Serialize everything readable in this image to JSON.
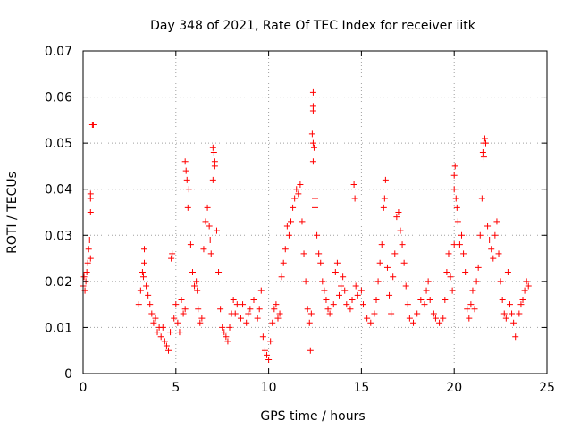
{
  "chart_data": {
    "type": "scatter",
    "title": "Day 348 of 2021, Rate Of TEC Index for receiver iitk",
    "xlabel": "GPS time / hours",
    "ylabel": "ROTI / TECUs",
    "xlim": [
      0,
      25
    ],
    "ylim": [
      0,
      0.07
    ],
    "x_ticks": [
      0,
      5,
      10,
      15,
      20,
      25
    ],
    "x_tick_labels": [
      "0",
      "5",
      "10",
      "15",
      "20",
      "25"
    ],
    "y_ticks": [
      0,
      0.01,
      0.02,
      0.03,
      0.04,
      0.05,
      0.06,
      0.07
    ],
    "y_tick_labels": [
      "0",
      "0.01",
      "0.02",
      "0.03",
      "0.04",
      "0.05",
      "0.06",
      "0.07"
    ],
    "grid": true,
    "marker": "+",
    "color": "#ff0000",
    "series": [
      {
        "points": [
          [
            0.0,
            0.019
          ],
          [
            0.05,
            0.021
          ],
          [
            0.1,
            0.018
          ],
          [
            0.15,
            0.02
          ],
          [
            0.2,
            0.022
          ],
          [
            0.25,
            0.024
          ],
          [
            0.3,
            0.027
          ],
          [
            0.35,
            0.029
          ],
          [
            0.4,
            0.025
          ],
          [
            0.4,
            0.035
          ],
          [
            0.4,
            0.038
          ],
          [
            0.4,
            0.039
          ],
          [
            0.5,
            0.054
          ],
          [
            0.55,
            0.054
          ],
          [
            3.0,
            0.015
          ],
          [
            3.1,
            0.018
          ],
          [
            3.2,
            0.022
          ],
          [
            3.25,
            0.021
          ],
          [
            3.3,
            0.024
          ],
          [
            3.3,
            0.027
          ],
          [
            3.4,
            0.019
          ],
          [
            3.5,
            0.017
          ],
          [
            3.6,
            0.015
          ],
          [
            3.7,
            0.013
          ],
          [
            3.8,
            0.011
          ],
          [
            3.9,
            0.012
          ],
          [
            4.0,
            0.009
          ],
          [
            4.1,
            0.01
          ],
          [
            4.2,
            0.008
          ],
          [
            4.3,
            0.01
          ],
          [
            4.4,
            0.007
          ],
          [
            4.5,
            0.006
          ],
          [
            4.6,
            0.005
          ],
          [
            4.7,
            0.009
          ],
          [
            4.75,
            0.025
          ],
          [
            4.8,
            0.026
          ],
          [
            4.9,
            0.012
          ],
          [
            5.0,
            0.015
          ],
          [
            5.1,
            0.011
          ],
          [
            5.2,
            0.009
          ],
          [
            5.3,
            0.016
          ],
          [
            5.4,
            0.013
          ],
          [
            5.5,
            0.014
          ],
          [
            5.5,
            0.046
          ],
          [
            5.55,
            0.044
          ],
          [
            5.6,
            0.042
          ],
          [
            5.65,
            0.036
          ],
          [
            5.7,
            0.04
          ],
          [
            5.8,
            0.028
          ],
          [
            5.9,
            0.022
          ],
          [
            6.0,
            0.019
          ],
          [
            6.1,
            0.02
          ],
          [
            6.15,
            0.018
          ],
          [
            6.2,
            0.014
          ],
          [
            6.3,
            0.011
          ],
          [
            6.4,
            0.012
          ],
          [
            6.5,
            0.027
          ],
          [
            6.6,
            0.033
          ],
          [
            6.7,
            0.036
          ],
          [
            6.8,
            0.032
          ],
          [
            6.85,
            0.029
          ],
          [
            6.9,
            0.026
          ],
          [
            7.0,
            0.049
          ],
          [
            7.05,
            0.048
          ],
          [
            7.1,
            0.046
          ],
          [
            7.1,
            0.045
          ],
          [
            7.0,
            0.042
          ],
          [
            7.2,
            0.031
          ],
          [
            7.3,
            0.022
          ],
          [
            7.4,
            0.014
          ],
          [
            7.5,
            0.01
          ],
          [
            7.6,
            0.009
          ],
          [
            7.7,
            0.008
          ],
          [
            7.8,
            0.007
          ],
          [
            7.9,
            0.01
          ],
          [
            8.0,
            0.013
          ],
          [
            8.1,
            0.016
          ],
          [
            8.2,
            0.013
          ],
          [
            8.3,
            0.015
          ],
          [
            8.5,
            0.012
          ],
          [
            8.6,
            0.015
          ],
          [
            8.8,
            0.011
          ],
          [
            8.9,
            0.013
          ],
          [
            9.0,
            0.014
          ],
          [
            9.2,
            0.016
          ],
          [
            9.4,
            0.012
          ],
          [
            9.5,
            0.014
          ],
          [
            9.6,
            0.018
          ],
          [
            9.7,
            0.008
          ],
          [
            9.8,
            0.005
          ],
          [
            9.9,
            0.004
          ],
          [
            10.0,
            0.003
          ],
          [
            10.1,
            0.007
          ],
          [
            10.2,
            0.011
          ],
          [
            10.3,
            0.014
          ],
          [
            10.4,
            0.015
          ],
          [
            10.5,
            0.012
          ],
          [
            10.6,
            0.013
          ],
          [
            10.7,
            0.021
          ],
          [
            10.8,
            0.024
          ],
          [
            10.9,
            0.027
          ],
          [
            11.0,
            0.032
          ],
          [
            11.1,
            0.03
          ],
          [
            11.2,
            0.033
          ],
          [
            11.3,
            0.036
          ],
          [
            11.4,
            0.038
          ],
          [
            11.5,
            0.04
          ],
          [
            11.6,
            0.039
          ],
          [
            11.7,
            0.041
          ],
          [
            11.8,
            0.033
          ],
          [
            11.9,
            0.026
          ],
          [
            12.0,
            0.02
          ],
          [
            12.1,
            0.014
          ],
          [
            12.2,
            0.011
          ],
          [
            12.25,
            0.005
          ],
          [
            12.3,
            0.013
          ],
          [
            12.4,
            0.061
          ],
          [
            12.4,
            0.058
          ],
          [
            12.4,
            0.057
          ],
          [
            12.35,
            0.052
          ],
          [
            12.4,
            0.05
          ],
          [
            12.45,
            0.049
          ],
          [
            12.4,
            0.046
          ],
          [
            12.5,
            0.038
          ],
          [
            12.5,
            0.036
          ],
          [
            12.6,
            0.03
          ],
          [
            12.7,
            0.026
          ],
          [
            12.8,
            0.024
          ],
          [
            12.9,
            0.02
          ],
          [
            13.0,
            0.018
          ],
          [
            13.1,
            0.016
          ],
          [
            13.2,
            0.014
          ],
          [
            13.3,
            0.013
          ],
          [
            13.5,
            0.015
          ],
          [
            13.6,
            0.022
          ],
          [
            13.7,
            0.024
          ],
          [
            13.8,
            0.017
          ],
          [
            13.9,
            0.019
          ],
          [
            14.0,
            0.021
          ],
          [
            14.1,
            0.018
          ],
          [
            14.2,
            0.015
          ],
          [
            14.4,
            0.014
          ],
          [
            14.5,
            0.016
          ],
          [
            14.6,
            0.041
          ],
          [
            14.65,
            0.038
          ],
          [
            14.7,
            0.019
          ],
          [
            14.8,
            0.017
          ],
          [
            15.0,
            0.018
          ],
          [
            15.1,
            0.015
          ],
          [
            15.3,
            0.012
          ],
          [
            15.5,
            0.011
          ],
          [
            15.7,
            0.013
          ],
          [
            15.8,
            0.016
          ],
          [
            15.9,
            0.02
          ],
          [
            16.0,
            0.024
          ],
          [
            16.1,
            0.028
          ],
          [
            16.2,
            0.036
          ],
          [
            16.25,
            0.038
          ],
          [
            16.3,
            0.042
          ],
          [
            16.4,
            0.023
          ],
          [
            16.5,
            0.017
          ],
          [
            16.6,
            0.013
          ],
          [
            16.7,
            0.021
          ],
          [
            16.8,
            0.026
          ],
          [
            16.9,
            0.034
          ],
          [
            17.0,
            0.035
          ],
          [
            17.1,
            0.031
          ],
          [
            17.2,
            0.028
          ],
          [
            17.3,
            0.024
          ],
          [
            17.4,
            0.019
          ],
          [
            17.5,
            0.015
          ],
          [
            17.6,
            0.012
          ],
          [
            17.8,
            0.011
          ],
          [
            18.0,
            0.013
          ],
          [
            18.2,
            0.016
          ],
          [
            18.4,
            0.015
          ],
          [
            18.5,
            0.018
          ],
          [
            18.6,
            0.02
          ],
          [
            18.7,
            0.016
          ],
          [
            18.9,
            0.013
          ],
          [
            19.0,
            0.012
          ],
          [
            19.2,
            0.011
          ],
          [
            19.4,
            0.012
          ],
          [
            19.5,
            0.016
          ],
          [
            19.6,
            0.022
          ],
          [
            19.7,
            0.026
          ],
          [
            19.8,
            0.021
          ],
          [
            19.9,
            0.018
          ],
          [
            20.0,
            0.028
          ],
          [
            20.0,
            0.04
          ],
          [
            20.05,
            0.045
          ],
          [
            20.0,
            0.043
          ],
          [
            20.1,
            0.038
          ],
          [
            20.15,
            0.036
          ],
          [
            20.2,
            0.033
          ],
          [
            20.3,
            0.028
          ],
          [
            20.4,
            0.03
          ],
          [
            20.5,
            0.026
          ],
          [
            20.6,
            0.022
          ],
          [
            20.7,
            0.014
          ],
          [
            20.8,
            0.012
          ],
          [
            20.9,
            0.015
          ],
          [
            21.0,
            0.018
          ],
          [
            21.1,
            0.014
          ],
          [
            21.2,
            0.02
          ],
          [
            21.3,
            0.023
          ],
          [
            21.4,
            0.03
          ],
          [
            21.5,
            0.038
          ],
          [
            21.55,
            0.048
          ],
          [
            21.6,
            0.05
          ],
          [
            21.6,
            0.047
          ],
          [
            21.65,
            0.051
          ],
          [
            21.7,
            0.05
          ],
          [
            21.8,
            0.032
          ],
          [
            21.9,
            0.029
          ],
          [
            22.0,
            0.027
          ],
          [
            22.1,
            0.025
          ],
          [
            22.2,
            0.03
          ],
          [
            22.3,
            0.033
          ],
          [
            22.4,
            0.026
          ],
          [
            22.5,
            0.02
          ],
          [
            22.6,
            0.016
          ],
          [
            22.7,
            0.013
          ],
          [
            22.8,
            0.012
          ],
          [
            22.9,
            0.022
          ],
          [
            23.0,
            0.015
          ],
          [
            23.1,
            0.013
          ],
          [
            23.2,
            0.011
          ],
          [
            23.3,
            0.008
          ],
          [
            23.5,
            0.013
          ],
          [
            23.6,
            0.015
          ],
          [
            23.7,
            0.016
          ],
          [
            23.8,
            0.018
          ],
          [
            23.9,
            0.02
          ],
          [
            24.0,
            0.019
          ]
        ]
      }
    ]
  }
}
